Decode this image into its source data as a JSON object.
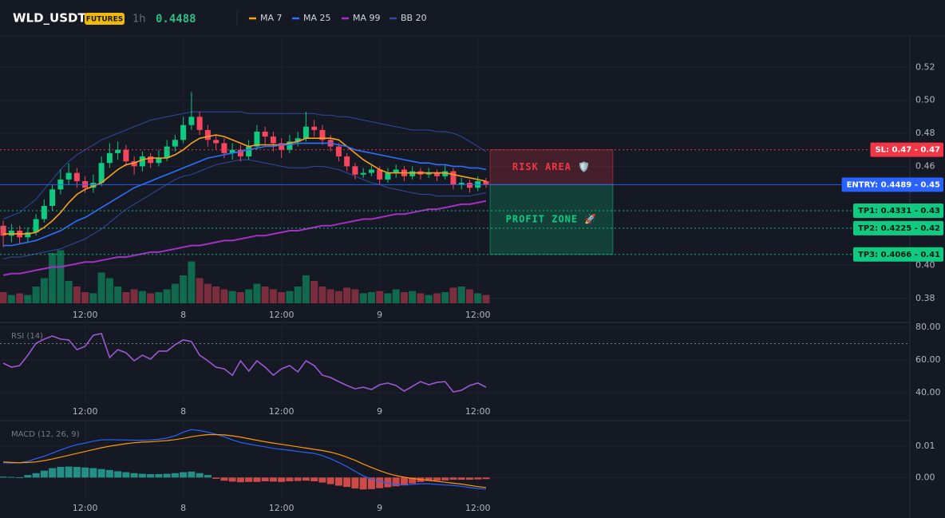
{
  "header": {
    "symbol": "WLD_USDT",
    "badge": "FUTURES",
    "interval": "1h"
  },
  "chart_data": [
    {
      "type": "candlestick",
      "xlim": [
        -0.4,
        110.8
      ],
      "xticks": [
        {
          "value": 10,
          "label": "12:00"
        },
        {
          "value": 22,
          "label": "8"
        },
        {
          "value": 34,
          "label": "12:00"
        },
        {
          "value": 46,
          "label": "9"
        },
        {
          "value": 58,
          "label": "12:00"
        }
      ],
      "ylim": [
        0.377,
        0.539
      ],
      "yticks": [
        0.52,
        {
          "value": 0.5,
          "label": "0.50"
        },
        0.48,
        0.46,
        {
          "value": 0.4,
          "label": "0.40"
        },
        0.38
      ],
      "grid": true,
      "up_color": "#0ecb81",
      "down_color": "#f6465d",
      "open": [
        0.424,
        0.418,
        0.421,
        0.417,
        0.42,
        0.428,
        0.436,
        0.446,
        0.452,
        0.456,
        0.451,
        0.447,
        0.45,
        0.462,
        0.468,
        0.47,
        0.463,
        0.46,
        0.466,
        0.462,
        0.465,
        0.472,
        0.476,
        0.485,
        0.49,
        0.482,
        0.476,
        0.474,
        0.468,
        0.47,
        0.466,
        0.472,
        0.481,
        0.478,
        0.474,
        0.47,
        0.475,
        0.477,
        0.484,
        0.482,
        0.476,
        0.472,
        0.466,
        0.46,
        0.455,
        0.456,
        0.458,
        0.452,
        0.456,
        0.458,
        0.454,
        0.457,
        0.455,
        0.456,
        0.454,
        0.457,
        0.449,
        0.45,
        0.447,
        0.451
      ],
      "high": [
        0.427,
        0.425,
        0.424,
        0.423,
        0.431,
        0.44,
        0.449,
        0.458,
        0.462,
        0.459,
        0.454,
        0.455,
        0.466,
        0.474,
        0.475,
        0.473,
        0.466,
        0.469,
        0.468,
        0.47,
        0.476,
        0.479,
        0.49,
        0.505,
        0.493,
        0.485,
        0.479,
        0.477,
        0.474,
        0.473,
        0.476,
        0.485,
        0.484,
        0.481,
        0.477,
        0.479,
        0.481,
        0.493,
        0.488,
        0.485,
        0.479,
        0.474,
        0.468,
        0.462,
        0.459,
        0.461,
        0.46,
        0.459,
        0.461,
        0.46,
        0.46,
        0.459,
        0.459,
        0.458,
        0.461,
        0.459,
        0.453,
        0.452,
        0.454,
        0.453
      ],
      "low": [
        0.411,
        0.414,
        0.413,
        0.414,
        0.418,
        0.426,
        0.433,
        0.443,
        0.449,
        0.447,
        0.444,
        0.444,
        0.448,
        0.459,
        0.464,
        0.46,
        0.455,
        0.457,
        0.459,
        0.46,
        0.463,
        0.469,
        0.474,
        0.482,
        0.479,
        0.472,
        0.47,
        0.465,
        0.464,
        0.463,
        0.464,
        0.47,
        0.473,
        0.469,
        0.465,
        0.468,
        0.472,
        0.475,
        0.478,
        0.473,
        0.469,
        0.463,
        0.457,
        0.452,
        0.453,
        0.454,
        0.449,
        0.45,
        0.453,
        0.451,
        0.452,
        0.452,
        0.453,
        0.451,
        0.452,
        0.446,
        0.446,
        0.444,
        0.445,
        0.447
      ],
      "close": [
        0.418,
        0.421,
        0.417,
        0.42,
        0.428,
        0.436,
        0.446,
        0.452,
        0.456,
        0.451,
        0.447,
        0.45,
        0.462,
        0.468,
        0.47,
        0.463,
        0.46,
        0.466,
        0.462,
        0.465,
        0.472,
        0.476,
        0.485,
        0.49,
        0.482,
        0.476,
        0.474,
        0.468,
        0.47,
        0.466,
        0.472,
        0.481,
        0.478,
        0.474,
        0.47,
        0.475,
        0.477,
        0.484,
        0.482,
        0.476,
        0.472,
        0.466,
        0.46,
        0.455,
        0.456,
        0.458,
        0.452,
        0.456,
        0.458,
        0.454,
        0.457,
        0.455,
        0.456,
        0.454,
        0.457,
        0.449,
        0.45,
        0.447,
        0.451,
        0.4488
      ],
      "volume": [
        20,
        15,
        18,
        15,
        30,
        45,
        90,
        95,
        40,
        30,
        20,
        18,
        55,
        45,
        30,
        20,
        25,
        22,
        18,
        20,
        25,
        35,
        50,
        75,
        45,
        35,
        30,
        25,
        22,
        20,
        25,
        35,
        30,
        25,
        20,
        22,
        30,
        50,
        40,
        30,
        25,
        22,
        28,
        25,
        18,
        20,
        22,
        18,
        25,
        20,
        22,
        18,
        15,
        18,
        20,
        28,
        30,
        25,
        18,
        15
      ],
      "series": [
        {
          "name": "MA 7",
          "color": "#f7a21b",
          "values": [
            0.419,
            0.419,
            0.419,
            0.419,
            0.42,
            0.423,
            0.427,
            0.432,
            0.438,
            0.443,
            0.446,
            0.448,
            0.45,
            0.454,
            0.458,
            0.461,
            0.462,
            0.464,
            0.465,
            0.465,
            0.465,
            0.467,
            0.47,
            0.474,
            0.477,
            0.478,
            0.479,
            0.478,
            0.476,
            0.474,
            0.472,
            0.473,
            0.473,
            0.473,
            0.473,
            0.474,
            0.475,
            0.477,
            0.477,
            0.477,
            0.477,
            0.476,
            0.472,
            0.468,
            0.464,
            0.461,
            0.458,
            0.456,
            0.456,
            0.456,
            0.456,
            0.456,
            0.456,
            0.456,
            0.456,
            0.455,
            0.454,
            0.453,
            0.452,
            0.451
          ]
        },
        {
          "name": "MA 25",
          "color": "#2f6fff",
          "values": [
            0.412,
            0.412,
            0.413,
            0.414,
            0.415,
            0.417,
            0.419,
            0.421,
            0.424,
            0.427,
            0.429,
            0.432,
            0.435,
            0.438,
            0.441,
            0.444,
            0.447,
            0.449,
            0.451,
            0.453,
            0.455,
            0.457,
            0.459,
            0.461,
            0.463,
            0.465,
            0.466,
            0.467,
            0.468,
            0.469,
            0.47,
            0.471,
            0.472,
            0.472,
            0.473,
            0.473,
            0.474,
            0.474,
            0.474,
            0.474,
            0.474,
            0.473,
            0.472,
            0.47,
            0.469,
            0.468,
            0.467,
            0.466,
            0.465,
            0.464,
            0.463,
            0.462,
            0.462,
            0.461,
            0.461,
            0.46,
            0.46,
            0.459,
            0.459,
            0.458
          ]
        },
        {
          "name": "MA 99",
          "color": "#a62fc4",
          "values": [
            0.394,
            0.395,
            0.395,
            0.396,
            0.397,
            0.398,
            0.399,
            0.399,
            0.4,
            0.401,
            0.402,
            0.402,
            0.403,
            0.404,
            0.405,
            0.405,
            0.406,
            0.407,
            0.408,
            0.408,
            0.409,
            0.41,
            0.411,
            0.412,
            0.412,
            0.413,
            0.414,
            0.415,
            0.415,
            0.416,
            0.417,
            0.418,
            0.418,
            0.419,
            0.42,
            0.421,
            0.421,
            0.422,
            0.423,
            0.424,
            0.424,
            0.425,
            0.426,
            0.427,
            0.428,
            0.428,
            0.429,
            0.43,
            0.431,
            0.431,
            0.432,
            0.433,
            0.434,
            0.434,
            0.435,
            0.436,
            0.437,
            0.437,
            0.438,
            0.439
          ]
        },
        {
          "name": "BB 20",
          "color": "#2f4a9e",
          "upper": [
            0.428,
            0.43,
            0.432,
            0.436,
            0.44,
            0.446,
            0.452,
            0.458,
            0.463,
            0.467,
            0.47,
            0.473,
            0.476,
            0.478,
            0.48,
            0.482,
            0.484,
            0.486,
            0.488,
            0.489,
            0.49,
            0.491,
            0.492,
            0.493,
            0.493,
            0.493,
            0.493,
            0.493,
            0.493,
            0.493,
            0.492,
            0.492,
            0.492,
            0.492,
            0.492,
            0.492,
            0.492,
            0.492,
            0.492,
            0.491,
            0.491,
            0.49,
            0.49,
            0.489,
            0.488,
            0.487,
            0.486,
            0.485,
            0.484,
            0.483,
            0.482,
            0.482,
            0.482,
            0.481,
            0.481,
            0.48,
            0.478,
            0.475,
            0.472,
            0.469
          ],
          "lower": [
            0.404,
            0.405,
            0.405,
            0.406,
            0.407,
            0.408,
            0.409,
            0.41,
            0.412,
            0.414,
            0.416,
            0.419,
            0.422,
            0.426,
            0.43,
            0.434,
            0.437,
            0.44,
            0.443,
            0.446,
            0.449,
            0.452,
            0.454,
            0.455,
            0.457,
            0.459,
            0.461,
            0.462,
            0.463,
            0.464,
            0.464,
            0.463,
            0.462,
            0.461,
            0.46,
            0.459,
            0.459,
            0.459,
            0.46,
            0.46,
            0.459,
            0.458,
            0.456,
            0.454,
            0.452,
            0.45,
            0.449,
            0.447,
            0.446,
            0.445,
            0.444,
            0.443,
            0.443,
            0.442,
            0.442,
            0.442,
            0.442,
            0.442,
            0.443,
            0.444
          ]
        }
      ],
      "levels": [
        {
          "label": "SL: 0.47 - 0.47",
          "value": 0.47,
          "color": "#f23645",
          "dash": true
        },
        {
          "label": "ENTRY: 0.4489 - 0.45",
          "value": 0.4489,
          "color": "#2962ff",
          "dash": false
        },
        {
          "label": "TP1: 0.4331 - 0.43",
          "value": 0.4331,
          "color": "#0ecb81",
          "dash": true
        },
        {
          "label": "TP2: 0.4225 - 0.42",
          "value": 0.4225,
          "color": "#0ecb81",
          "dash": true
        },
        {
          "label": "TP3: 0.4066 - 0.41",
          "value": 0.4066,
          "color": "#0ecb81",
          "dash": true
        }
      ],
      "zones": [
        {
          "label": "RISK AREA 🛡️",
          "color": "#f23645"
        },
        {
          "label": "PROFIT ZONE 🚀",
          "color": "#0ecb81"
        }
      ]
    },
    {
      "type": "line",
      "title": "RSI (14)",
      "xlim": [
        -0.4,
        110.8
      ],
      "xticks": [
        {
          "value": 10,
          "label": "12:00"
        },
        {
          "value": 22,
          "label": "8"
        },
        {
          "value": 34,
          "label": "12:00"
        },
        {
          "value": 46,
          "label": "9"
        },
        {
          "value": 58,
          "label": "12:00"
        }
      ],
      "ylim": [
        33.7,
        82.4
      ],
      "yticks": [
        {
          "value": 80,
          "label": "80.00"
        },
        {
          "value": 60,
          "label": "60.00"
        },
        {
          "value": 40,
          "label": "40.00"
        }
      ],
      "levels": [
        70
      ],
      "series": [
        {
          "color": "#9b59d0",
          "values": [
            58.0,
            55.6,
            56.6,
            62.9,
            70.2,
            72.7,
            74.6,
            72.7,
            72.2,
            66.3,
            68.3,
            75.1,
            76.1,
            61.5,
            66.3,
            64.4,
            59.5,
            62.9,
            60.5,
            65.4,
            65.4,
            69.3,
            72.2,
            71.2,
            62.9,
            59.5,
            55.6,
            54.6,
            50.7,
            59.5,
            53.2,
            59.5,
            55.6,
            50.7,
            54.6,
            56.6,
            52.7,
            59.5,
            56.6,
            50.7,
            49.3,
            46.8,
            44.4,
            42.4,
            43.4,
            42.0,
            44.9,
            45.9,
            44.4,
            41.0,
            43.9,
            46.8,
            44.9,
            46.3,
            46.8,
            40.5,
            41.5,
            44.4,
            45.9,
            43.4
          ]
        }
      ]
    },
    {
      "type": "macd",
      "title": "MACD (12, 26, 9)",
      "xlim": [
        -0.4,
        110.8
      ],
      "xticks": [
        {
          "value": 10,
          "label": "12:00"
        },
        {
          "value": 22,
          "label": "8"
        },
        {
          "value": 34,
          "label": "12:00"
        },
        {
          "value": 46,
          "label": "9"
        },
        {
          "value": 58,
          "label": "12:00"
        }
      ],
      "ylim": [
        -0.0068,
        0.0179
      ],
      "yticks": [
        0.01,
        {
          "value": 0,
          "label": "0.00"
        }
      ],
      "up_color": "#26a69a",
      "down_color": "#ef5350",
      "histogram": [
        0.0003,
        0.0002,
        0.0001,
        0.0008,
        0.0014,
        0.0022,
        0.003,
        0.0034,
        0.0035,
        0.0034,
        0.0032,
        0.003,
        0.0027,
        0.0024,
        0.002,
        0.0017,
        0.0014,
        0.0012,
        0.0011,
        0.0011,
        0.0012,
        0.0014,
        0.0017,
        0.0019,
        0.0014,
        0.0008,
        -0.0004,
        -0.001,
        -0.0013,
        -0.0015,
        -0.0014,
        -0.0014,
        -0.0012,
        -0.0013,
        -0.0014,
        -0.0012,
        -0.0011,
        -0.001,
        -0.0012,
        -0.0016,
        -0.0021,
        -0.0026,
        -0.003,
        -0.0035,
        -0.0038,
        -0.0037,
        -0.0034,
        -0.0031,
        -0.0028,
        -0.0025,
        -0.0019,
        -0.0014,
        -0.0011,
        -0.001,
        -0.0009,
        -0.0007,
        -0.0007,
        -0.0007,
        -0.0006,
        -0.0005
      ],
      "series": [
        {
          "color": "#2962ff",
          "values": [
            0.0047,
            0.0046,
            0.0047,
            0.0052,
            0.006,
            0.0068,
            0.0078,
            0.0088,
            0.0097,
            0.0105,
            0.011,
            0.0116,
            0.012,
            0.0121,
            0.012,
            0.012,
            0.0119,
            0.0119,
            0.012,
            0.0122,
            0.0126,
            0.0133,
            0.0145,
            0.0153,
            0.015,
            0.0145,
            0.0138,
            0.013,
            0.012,
            0.0112,
            0.0107,
            0.0102,
            0.0098,
            0.0093,
            0.009,
            0.0087,
            0.0083,
            0.008,
            0.0077,
            0.007,
            0.006,
            0.0048,
            0.0035,
            0.002,
            0.0005,
            -0.0005,
            -0.0012,
            -0.0018,
            -0.0022,
            -0.0024,
            -0.0022,
            -0.002,
            -0.002,
            -0.0022,
            -0.0024,
            -0.0025,
            -0.0028,
            -0.0032,
            -0.0035,
            -0.0037
          ]
        },
        {
          "color": "#ff9800",
          "values": [
            0.005,
            0.0048,
            0.0047,
            0.0048,
            0.005,
            0.0054,
            0.0059,
            0.0065,
            0.0071,
            0.0077,
            0.0083,
            0.0089,
            0.0095,
            0.01,
            0.0104,
            0.0108,
            0.0111,
            0.0113,
            0.0114,
            0.0116,
            0.0118,
            0.0121,
            0.0125,
            0.013,
            0.0134,
            0.0137,
            0.0137,
            0.0136,
            0.0133,
            0.0129,
            0.0124,
            0.0119,
            0.0114,
            0.011,
            0.0106,
            0.0102,
            0.0098,
            0.0094,
            0.009,
            0.0086,
            0.0081,
            0.0074,
            0.0065,
            0.0055,
            0.0043,
            0.0032,
            0.0022,
            0.0013,
            0.0006,
            0.0001,
            -0.0003,
            -0.0006,
            -0.0009,
            -0.0012,
            -0.0015,
            -0.0018,
            -0.0021,
            -0.0025,
            -0.0029,
            -0.0032
          ]
        }
      ]
    }
  ]
}
